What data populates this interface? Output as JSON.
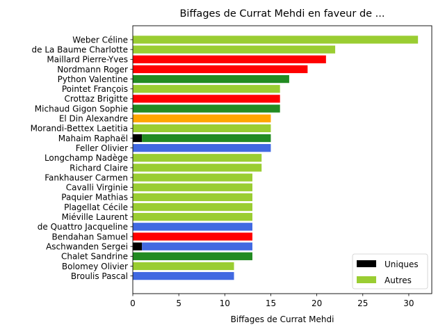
{
  "chart_data": {
    "type": "bar",
    "orientation": "horizontal",
    "title": "Biffages de Currat Mehdi en faveur de ...",
    "xlabel": "Biffages de Currat Mehdi",
    "ylabel": "",
    "xlim": [
      0,
      32.5
    ],
    "xticks": [
      0,
      5,
      10,
      15,
      20,
      25,
      30
    ],
    "grid": false,
    "legend_position": "lower-right",
    "legend": [
      {
        "label": "Uniques",
        "color": "#000000"
      },
      {
        "label": "Autres",
        "color": "#9acd32"
      }
    ],
    "categories": [
      "Weber Céline",
      "de La Baume Charlotte",
      "Maillard Pierre-Yves",
      "Nordmann Roger",
      "Python Valentine",
      "Pointet François",
      "Crottaz Brigitte",
      "Michaud Gigon Sophie",
      "El Din Alexandre",
      "Morandi-Bettex Laetitia",
      "Mahaim Raphaël",
      "Feller Olivier",
      "Longchamp Nadège",
      "Richard Claire",
      "Fankhauser Carmen",
      "Cavalli Virginie",
      "Paquier Mathias",
      "Plagellat Cécile",
      "Miéville Laurent",
      "de Quattro Jacqueline",
      "Bendahan Samuel",
      "Aschwanden Sergei",
      "Chalet Sandrine",
      "Bolomey Olivier",
      "Broulis Pascal"
    ],
    "series": [
      {
        "name": "Uniques",
        "values": [
          0,
          0,
          0,
          0,
          0,
          0,
          0,
          0,
          0,
          0,
          1,
          0,
          0,
          0,
          0,
          0,
          0,
          0,
          0,
          0,
          0,
          1,
          0,
          0,
          0
        ]
      },
      {
        "name": "Autres",
        "values": [
          31,
          22,
          21,
          19,
          17,
          16,
          16,
          16,
          15,
          15,
          14,
          15,
          14,
          14,
          13,
          13,
          13,
          13,
          13,
          13,
          13,
          12,
          13,
          11,
          11
        ]
      }
    ],
    "bar_colors": [
      "#9acd32",
      "#9acd32",
      "#ff0000",
      "#ff0000",
      "#228b22",
      "#9acd32",
      "#ff0000",
      "#228b22",
      "#ffa500",
      "#9acd32",
      "#228b22",
      "#4169e1",
      "#9acd32",
      "#9acd32",
      "#9acd32",
      "#9acd32",
      "#9acd32",
      "#9acd32",
      "#9acd32",
      "#4169e1",
      "#ff0000",
      "#4169e1",
      "#228b22",
      "#9acd32",
      "#4169e1"
    ],
    "unique_color": "#000000"
  }
}
